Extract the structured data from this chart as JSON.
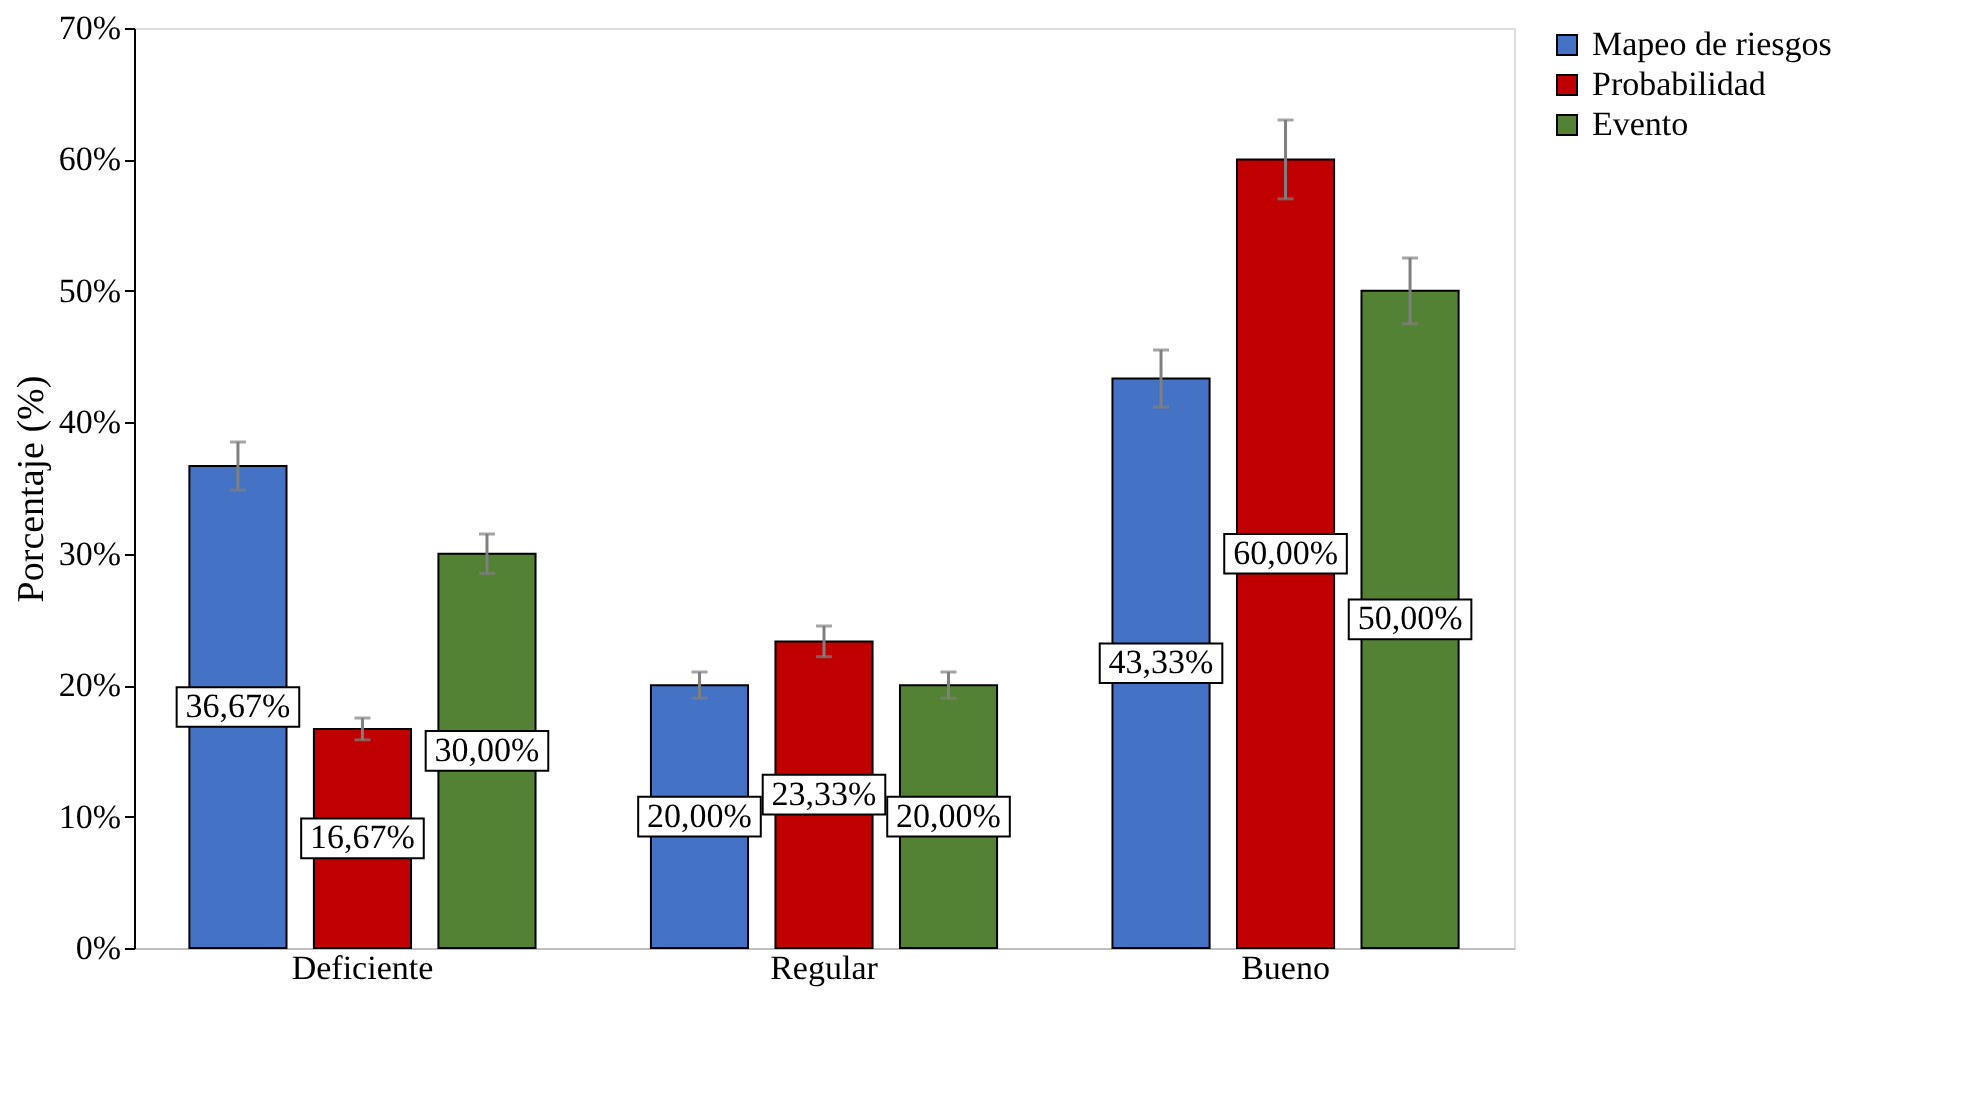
{
  "chart_data": {
    "type": "bar",
    "ylabel": "Porcentaje (%)",
    "categories": [
      "Deficiente",
      "Regular",
      "Bueno"
    ],
    "series": [
      {
        "name": "Mapeo de riesgos",
        "color": "#4472c4",
        "values": [
          36.67,
          20.0,
          43.33
        ],
        "errors": [
          1.83,
          1.0,
          2.17
        ],
        "value_labels": [
          "36,67%",
          "20,00%",
          "43,33%"
        ]
      },
      {
        "name": "Probabilidad",
        "color": "#c00000",
        "values": [
          16.67,
          23.33,
          60.0
        ],
        "errors": [
          0.83,
          1.17,
          3.0
        ],
        "value_labels": [
          "16,67%",
          "23,33%",
          "60,00%"
        ]
      },
      {
        "name": "Evento",
        "color": "#548235",
        "values": [
          30.0,
          20.0,
          50.0
        ],
        "errors": [
          1.5,
          1.0,
          2.5
        ],
        "value_labels": [
          "30,00%",
          "20,00%",
          "50,00%"
        ]
      }
    ],
    "ylim": [
      0,
      70
    ],
    "yticks": [
      {
        "value": 0,
        "label": "0%"
      },
      {
        "value": 10,
        "label": "10%"
      },
      {
        "value": 20,
        "label": "20%"
      },
      {
        "value": 30,
        "label": "30%"
      },
      {
        "value": 40,
        "label": "40%"
      },
      {
        "value": 50,
        "label": "50%"
      },
      {
        "value": 60,
        "label": "60%"
      },
      {
        "value": 70,
        "label": "70%"
      }
    ],
    "grid": false,
    "legend": "right"
  }
}
